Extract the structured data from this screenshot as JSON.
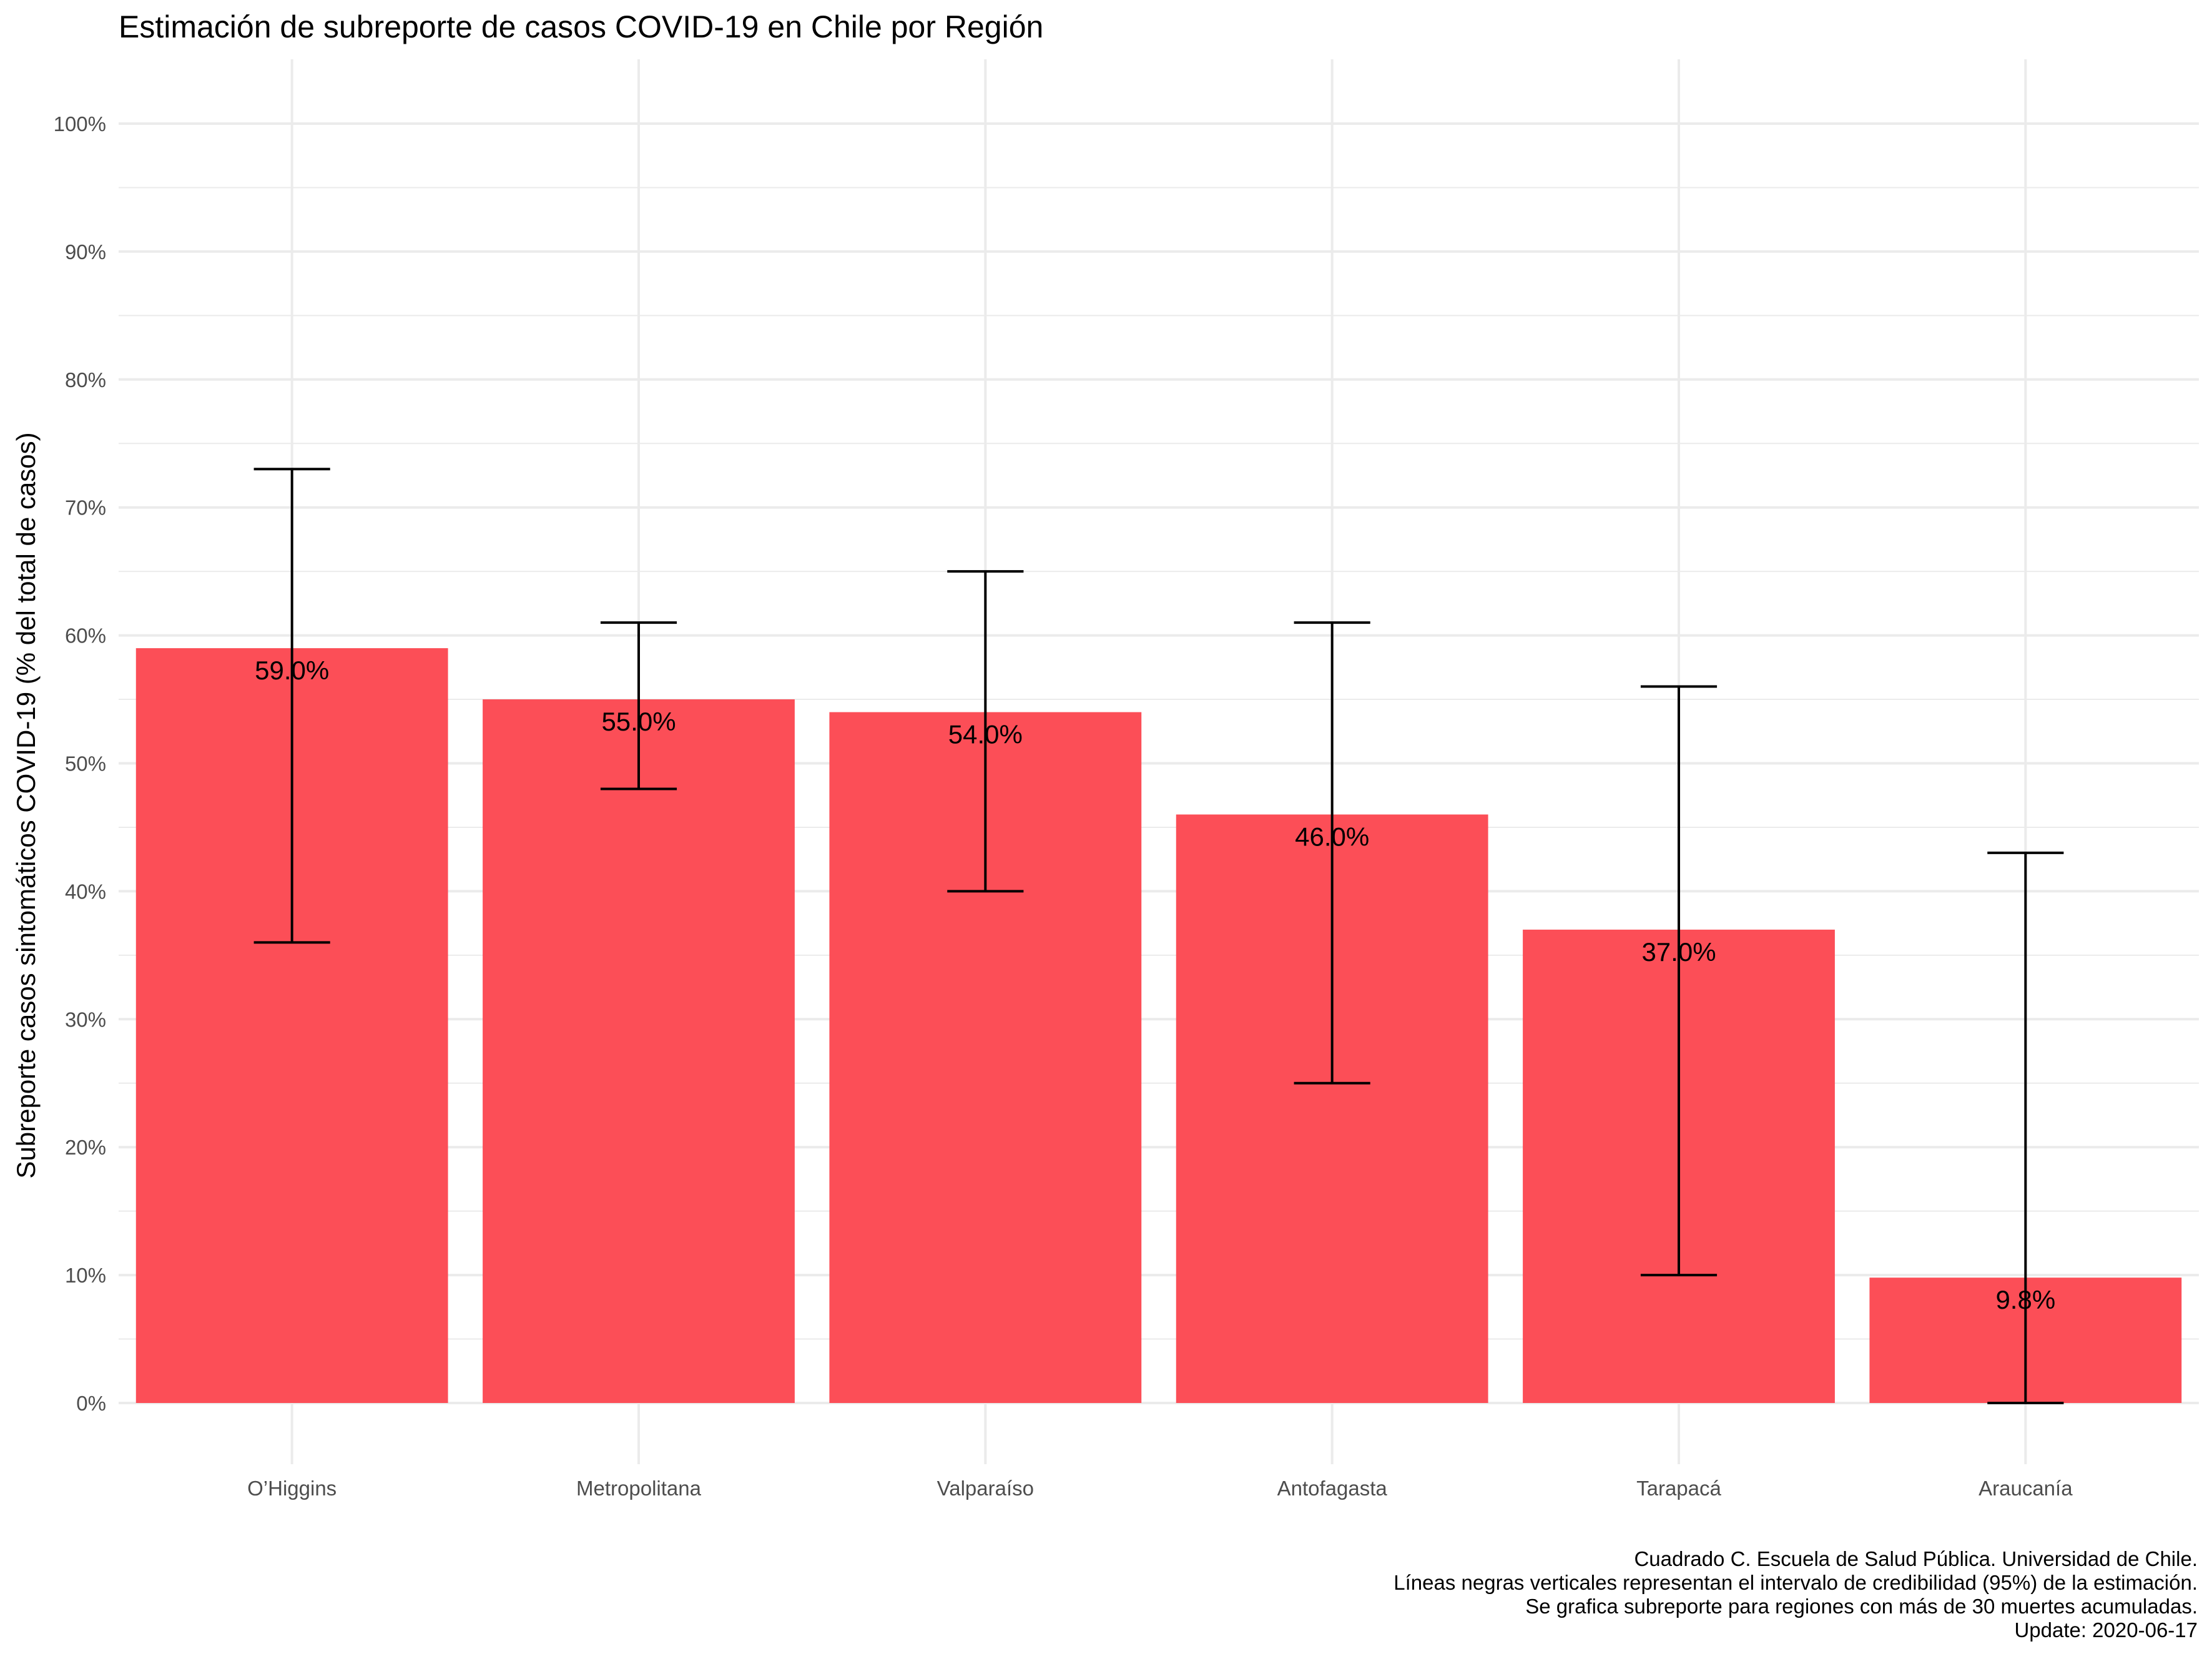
{
  "chart_data": {
    "type": "bar",
    "title": "Estimación de subreporte de casos COVID-19 en Chile por Región",
    "xlabel": "",
    "ylabel": "Subreporte casos sintomáticos COVID-19 (% del total de casos)",
    "ylim": [
      0,
      100
    ],
    "yticks": [
      "0%",
      "10%",
      "20%",
      "30%",
      "40%",
      "50%",
      "60%",
      "70%",
      "80%",
      "90%",
      "100%"
    ],
    "categories": [
      "O’Higgins",
      "Metropolitana",
      "Valparaíso",
      "Antofagasta",
      "Tarapacá",
      "Araucanía"
    ],
    "values": [
      59.0,
      55.0,
      54.0,
      46.0,
      37.0,
      9.8
    ],
    "data_labels": [
      "59.0%",
      "55.0%",
      "54.0%",
      "46.0%",
      "37.0%",
      "9.8%"
    ],
    "ci_low": [
      36,
      48,
      40,
      25,
      10,
      0
    ],
    "ci_high": [
      73,
      61,
      65,
      61,
      56,
      43
    ],
    "bar_color": "#fc4e57",
    "errorbar_color": "#000000",
    "grid": true,
    "legend": "none",
    "caption": [
      "Cuadrado C. Escuela de Salud Pública. Universidad de Chile.",
      "Líneas negras verticales representan el intervalo de credibilidad (95%) de la estimación.",
      "Se grafica subreporte para regiones con más de 30 muertes acumuladas.",
      "Update: 2020-06-17"
    ]
  }
}
